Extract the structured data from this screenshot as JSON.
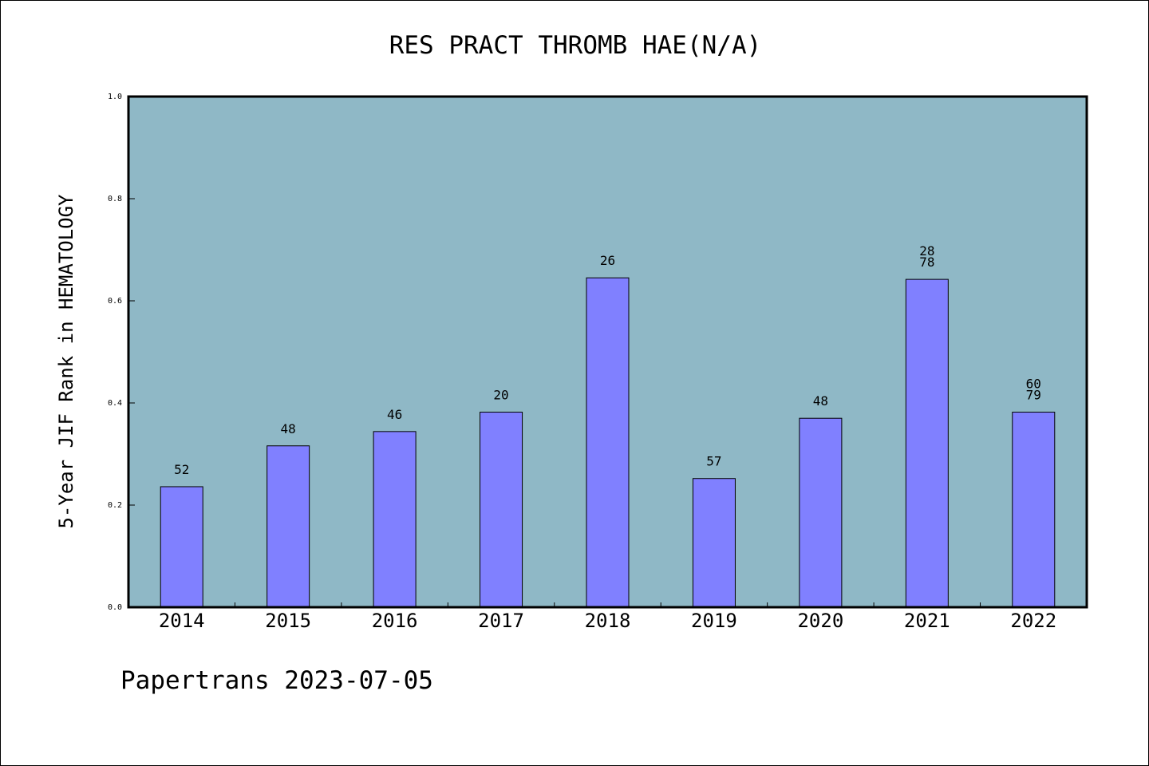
{
  "footer": "Papertrans 2023-07-05",
  "colors": {
    "plot_background": "#8fb8c6",
    "bar_fill": "#8080ff",
    "axis": "#000000"
  },
  "chart_data": {
    "type": "bar",
    "title": "RES PRACT THROMB HAE(N/A)",
    "xlabel": "",
    "ylabel": "5-Year JIF Rank in HEMATOLOGY",
    "ylim": [
      0,
      1.0
    ],
    "yticks": [
      "0.0",
      "0.2",
      "0.4",
      "0.6",
      "0.8",
      "1.0"
    ],
    "grid": false,
    "categories": [
      "2014",
      "2015",
      "2016",
      "2017",
      "2018",
      "2019",
      "2020",
      "2021",
      "2022"
    ],
    "values": [
      0.236,
      0.316,
      0.344,
      0.382,
      0.645,
      0.252,
      0.37,
      0.642,
      0.382
    ],
    "labels": [
      [
        "52"
      ],
      [
        "48"
      ],
      [
        "46"
      ],
      [
        "20"
      ],
      [
        "26"
      ],
      [
        "57"
      ],
      [
        "48"
      ],
      [
        "28",
        "78"
      ],
      [
        "60",
        "79"
      ]
    ]
  }
}
